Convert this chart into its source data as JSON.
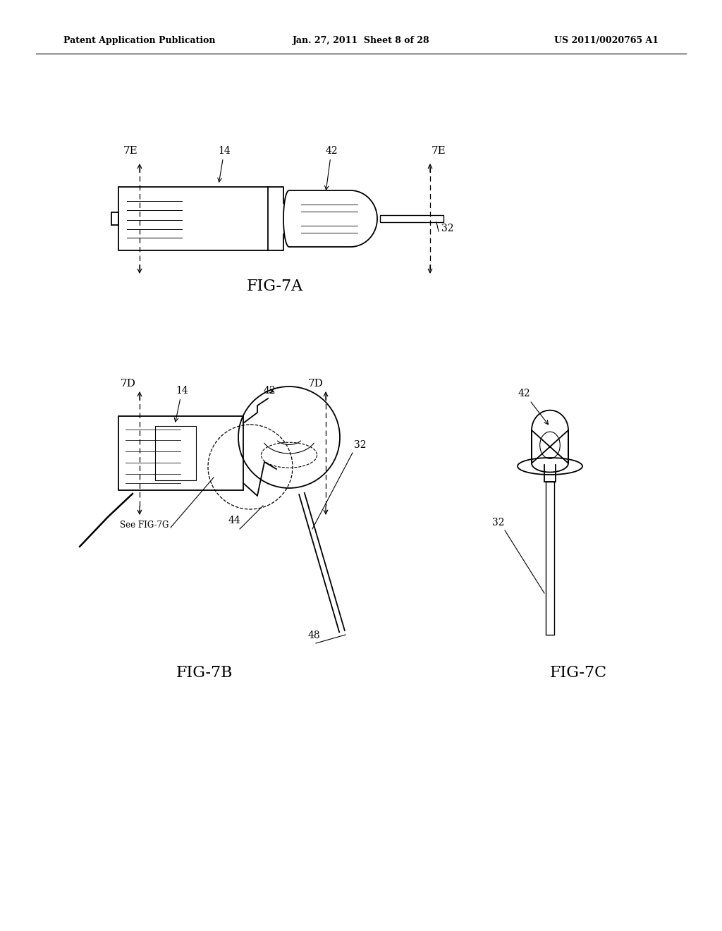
{
  "bg_color": "#ffffff",
  "line_color": "#000000",
  "header_left": "Patent Application Publication",
  "header_center": "Jan. 27, 2011  Sheet 8 of 28",
  "header_right": "US 2011/0020765 A1",
  "fig7a_label": "FIG-7A",
  "fig7b_label": "FIG-7B",
  "fig7c_label": "FIG-7C"
}
